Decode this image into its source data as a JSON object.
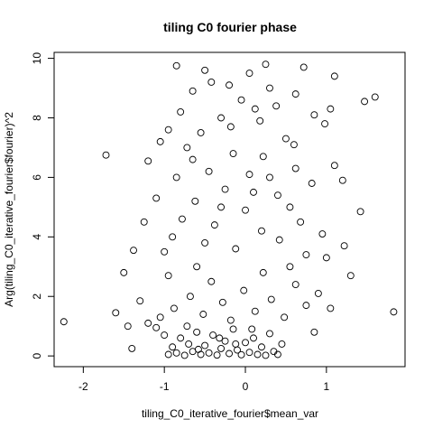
{
  "chart_data": {
    "type": "scatter",
    "title": "tiling C0 fourier phase",
    "x_label": "tiling_C0_iterative_fourier$mean_var",
    "y_label": "Arg(tiling_C0_iterative_fourier$fourier)^2",
    "xlim": [
      -2.36,
      1.97
    ],
    "ylim": [
      -0.36,
      10.2
    ],
    "xticks": [
      -2,
      -1,
      0,
      1
    ],
    "yticks": [
      0,
      2,
      4,
      6,
      8,
      10
    ],
    "color": "#000000",
    "x": [
      -2.24,
      -1.72,
      1.83,
      1.6,
      1.47,
      -1.5,
      -1.6,
      -1.4,
      -1.38,
      1.42,
      1.3,
      1.22,
      1.1,
      -0.95,
      -0.9,
      -0.85,
      -0.8,
      -0.75,
      -0.7,
      -0.65,
      -0.6,
      -0.55,
      -0.5,
      -0.45,
      -0.4,
      -0.35,
      -0.3,
      -0.25,
      -0.2,
      -0.15,
      -0.1,
      -0.05,
      0,
      0.05,
      0.1,
      0.15,
      0.2,
      0.25,
      0.3,
      0.35,
      0.4,
      0.45,
      -1.0,
      -1.1,
      -1.2,
      -0.58,
      -0.32,
      -0.12,
      0.08,
      -0.72,
      -1.05,
      -0.88,
      -0.68,
      -0.52,
      -0.42,
      -0.28,
      -0.18,
      -0.02,
      0.12,
      0.22,
      0.32,
      0.48,
      0.62,
      0.75,
      0.9,
      1.05,
      -1.3,
      -0.95,
      -0.6,
      0.55,
      -1.45,
      0.85,
      1.0,
      -1.0,
      -0.9,
      -0.78,
      -0.62,
      -0.5,
      -0.38,
      -0.25,
      -0.12,
      0,
      0.1,
      0.2,
      0.3,
      0.42,
      0.55,
      0.68,
      0.82,
      0.95,
      1.1,
      -1.25,
      -1.1,
      -1.2,
      -0.85,
      -0.65,
      -0.45,
      -0.3,
      -0.15,
      0.05,
      0.22,
      0.4,
      0.62,
      0.75,
      1.2,
      -1.05,
      -0.72,
      -0.95,
      -0.8,
      -0.65,
      -0.55,
      -0.42,
      -0.3,
      -0.18,
      -0.05,
      0.05,
      0.18,
      0.25,
      0.38,
      0.5,
      0.62,
      0.72,
      0.85,
      0.98,
      -0.85,
      -0.5,
      0.3,
      0.6,
      1.05,
      -0.2,
      0.12
    ],
    "y": [
      1.15,
      6.75,
      1.48,
      8.7,
      8.55,
      2.8,
      1.45,
      0.25,
      3.55,
      4.85,
      2.7,
      3.7,
      9.4,
      0.05,
      0.3,
      0.1,
      0.6,
      0.02,
      0.4,
      0.15,
      0.8,
      0.05,
      0.35,
      0.1,
      0.7,
      0.03,
      0.25,
      0.5,
      0.08,
      0.9,
      0.2,
      0.04,
      0.45,
      0.12,
      0.6,
      0.05,
      0.3,
      0.02,
      0.75,
      0.15,
      0.05,
      0.4,
      0.7,
      0.95,
      1.1,
      0.22,
      0.6,
      0.4,
      0.9,
      1.0,
      1.3,
      1.6,
      2.0,
      1.4,
      2.5,
      1.8,
      1.2,
      2.2,
      1.5,
      2.8,
      1.9,
      1.3,
      2.4,
      1.7,
      2.1,
      1.6,
      1.85,
      2.7,
      3.0,
      3.0,
      1.0,
      0.8,
      3.3,
      3.5,
      4.0,
      4.6,
      5.2,
      3.8,
      4.4,
      5.6,
      3.6,
      4.9,
      5.5,
      4.2,
      6.0,
      3.9,
      5.0,
      4.5,
      5.8,
      4.1,
      6.4,
      4.5,
      5.3,
      6.55,
      6.0,
      6.6,
      6.2,
      5.0,
      6.8,
      6.1,
      6.7,
      5.4,
      6.3,
      3.4,
      5.9,
      7.2,
      7.0,
      7.6,
      8.2,
      8.9,
      7.5,
      9.2,
      8.0,
      7.7,
      8.6,
      9.5,
      7.9,
      9.8,
      8.4,
      7.3,
      8.8,
      9.7,
      8.1,
      7.8,
      9.75,
      9.6,
      9.0,
      7.1,
      8.3,
      9.1,
      8.3
    ]
  }
}
